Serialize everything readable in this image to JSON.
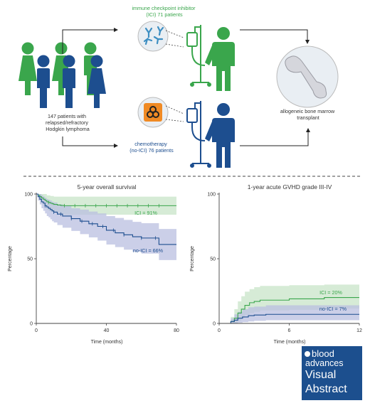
{
  "colors": {
    "green": "#3aa64c",
    "green_fill": "#cfe8cf",
    "blue": "#1d4e8f",
    "blue_fill": "#b9bfe0",
    "orange": "#f08a24",
    "gray": "#555555",
    "bone": "#d5d6dc",
    "brand_blue": "#1c4f8e"
  },
  "icons": [
    "person-icon",
    "antibody-icon",
    "iv-drip-icon",
    "biohazard-icon",
    "bone-icon"
  ],
  "top": {
    "patients_label": [
      "147 patients with",
      "relapsed/refractory",
      "Hodgkin lymphoma"
    ],
    "ici_label": [
      "immune checkpoint inhibitor",
      "(ICI) 71 patients"
    ],
    "chemo_label": [
      "chemotherapy",
      "(no-ICI) 76 patients"
    ],
    "transplant_label": [
      "allogeneic bone marrow",
      "transplant"
    ]
  },
  "brand": {
    "line1": "blood",
    "line2": "advances",
    "line3": "Visual",
    "line4": "Abstract"
  },
  "chart_data": [
    {
      "type": "line",
      "title": "5-year overall survival",
      "xlabel": "Time (months)",
      "ylabel": "Percentage",
      "xlim": [
        0,
        80
      ],
      "ylim": [
        0,
        100
      ],
      "xticks": [
        0,
        40,
        80
      ],
      "yticks": [
        0,
        50,
        100
      ],
      "series": [
        {
          "name": "ICI = 91%",
          "color": "#3aa64c",
          "x": [
            0,
            1,
            2,
            3,
            4,
            5,
            6,
            7,
            8,
            9,
            10,
            12,
            14,
            16,
            18,
            80
          ],
          "y": [
            100,
            99,
            98,
            97,
            96,
            95,
            94,
            93.5,
            93,
            92.5,
            92,
            91.5,
            91.2,
            91,
            91,
            91
          ],
          "lower": [
            100,
            97,
            95,
            93,
            91,
            89.5,
            88,
            87,
            86.5,
            86,
            85.5,
            85,
            84.5,
            84,
            84,
            84
          ],
          "upper": [
            100,
            100,
            100,
            100,
            100,
            100,
            99,
            99,
            98.5,
            98.5,
            98,
            98,
            98,
            98,
            98,
            98
          ]
        },
        {
          "name": "no-ICI = 66%",
          "color": "#1d4e8f",
          "x": [
            0,
            1,
            2,
            3,
            4,
            5,
            6,
            7,
            8,
            9,
            10,
            12,
            15,
            20,
            25,
            30,
            35,
            40,
            45,
            50,
            55,
            60,
            65,
            70,
            75,
            80
          ],
          "y": [
            100,
            98,
            96,
            94,
            93,
            91,
            90,
            89,
            88,
            87,
            86,
            84.5,
            83,
            81,
            79,
            77,
            75,
            72,
            70,
            68.5,
            67,
            66,
            66,
            61,
            61,
            61
          ],
          "lower": [
            100,
            95,
            92,
            89,
            87,
            85,
            83,
            82,
            80.5,
            79,
            78,
            76,
            74,
            71.5,
            69,
            66.5,
            64,
            61,
            59,
            57,
            55.5,
            54,
            54,
            49,
            49,
            49
          ],
          "upper": [
            100,
            100,
            100,
            99,
            98,
            97,
            96,
            95.5,
            95,
            94,
            93.5,
            92,
            91,
            89,
            88,
            86.5,
            85,
            83,
            81.5,
            80,
            78.5,
            77.5,
            77.5,
            73,
            73,
            73
          ]
        }
      ]
    },
    {
      "type": "line",
      "title": "1-year acute GVHD grade III-IV",
      "xlabel": "Time (months)",
      "ylabel": "Percentage",
      "xlim": [
        0,
        12
      ],
      "ylim": [
        0,
        100
      ],
      "xticks": [
        0,
        6,
        12
      ],
      "yticks": [
        0,
        50,
        100
      ],
      "series": [
        {
          "name": "ICI = 20%",
          "color": "#3aa64c",
          "x": [
            0,
            0.6,
            1.0,
            1.3,
            1.6,
            1.9,
            2.2,
            2.6,
            3.0,
            3.5,
            4.5,
            6.0,
            9.0,
            12.0
          ],
          "y": [
            0,
            0,
            1.5,
            4,
            8,
            11,
            14,
            16,
            17,
            18,
            18,
            19,
            20,
            20
          ],
          "lower": [
            0,
            0,
            0,
            0.5,
            2,
            4,
            6.5,
            8,
            9,
            10,
            10,
            10.5,
            11.5,
            11.5
          ],
          "upper": [
            0,
            0,
            5,
            11,
            17,
            21,
            24.5,
            26.5,
            28,
            29,
            29,
            29.5,
            30,
            30
          ]
        },
        {
          "name": "no-ICI = 7%",
          "color": "#1d4e8f",
          "x": [
            0,
            0.6,
            1.0,
            1.3,
            1.6,
            2.0,
            2.5,
            3.0,
            4.0,
            12.0
          ],
          "y": [
            0,
            0,
            1.5,
            2.5,
            4,
            5,
            6,
            6.5,
            7,
            7
          ],
          "lower": [
            0,
            0,
            0,
            0,
            0.5,
            1,
            1.5,
            2,
            2.5,
            2.5
          ],
          "upper": [
            0,
            0,
            4,
            7,
            9,
            11,
            12.5,
            13,
            14,
            14
          ]
        }
      ]
    }
  ]
}
